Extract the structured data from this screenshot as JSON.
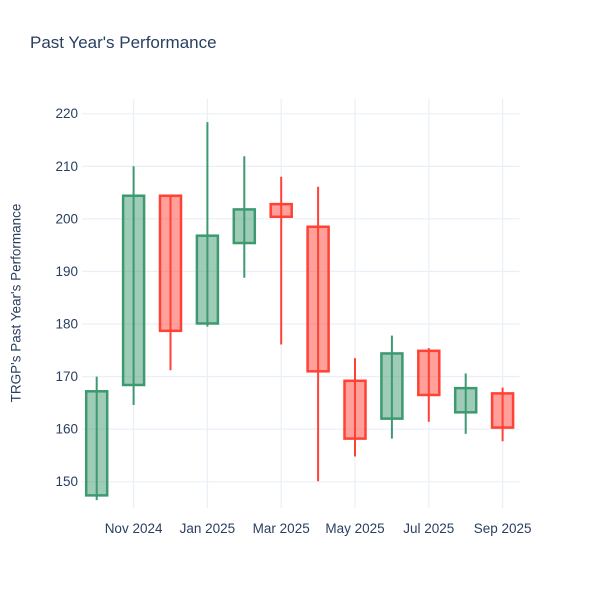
{
  "title": "Past Year's Performance",
  "chart_data": {
    "type": "candlestick",
    "title": "Past Year's Performance",
    "xlabel": "",
    "ylabel": "TRGP's Past Year's Performance",
    "categories": [
      "Oct 2024",
      "Nov 2024",
      "Dec 2024",
      "Jan 2025",
      "Feb 2025",
      "Mar 2025",
      "Apr 2025",
      "May 2025",
      "Jun 2025",
      "Jul 2025",
      "Aug 2025",
      "Sep 2025"
    ],
    "series": [
      {
        "name": "TRGP",
        "ohlc": [
          {
            "month": "Oct 2024",
            "open": 147.4,
            "high": 170.0,
            "low": 146.5,
            "close": 167.2
          },
          {
            "month": "Nov 2024",
            "open": 168.4,
            "high": 210.0,
            "low": 164.6,
            "close": 204.4
          },
          {
            "month": "Dec 2024",
            "open": 204.4,
            "high": 204.6,
            "low": 171.2,
            "close": 178.7
          },
          {
            "month": "Jan 2025",
            "open": 180.1,
            "high": 218.4,
            "low": 179.5,
            "close": 196.8
          },
          {
            "month": "Feb 2025",
            "open": 195.4,
            "high": 211.9,
            "low": 188.8,
            "close": 201.8
          },
          {
            "month": "Mar 2025",
            "open": 202.8,
            "high": 208.0,
            "low": 176.1,
            "close": 200.4
          },
          {
            "month": "Apr 2025",
            "open": 198.5,
            "high": 206.1,
            "low": 150.1,
            "close": 171.0
          },
          {
            "month": "May 2025",
            "open": 169.2,
            "high": 173.5,
            "low": 154.8,
            "close": 158.2
          },
          {
            "month": "Jun 2025",
            "open": 162.0,
            "high": 177.8,
            "low": 158.2,
            "close": 174.4
          },
          {
            "month": "Jul 2025",
            "open": 174.9,
            "high": 175.4,
            "low": 161.4,
            "close": 166.5
          },
          {
            "month": "Aug 2025",
            "open": 163.2,
            "high": 170.6,
            "low": 159.1,
            "close": 167.8
          },
          {
            "month": "Sep 2025",
            "open": 166.8,
            "high": 167.9,
            "low": 157.7,
            "close": 160.3
          }
        ]
      }
    ],
    "x_tick_labels": [
      "Nov 2024",
      "Jan 2025",
      "Mar 2025",
      "May 2025",
      "Jul 2025",
      "Sep 2025"
    ],
    "x_tick_indices": [
      1,
      3,
      5,
      7,
      9,
      11
    ],
    "y_ticks": [
      150,
      160,
      170,
      180,
      190,
      200,
      210,
      220
    ],
    "ylim": [
      145.0,
      222.8
    ],
    "grid": true,
    "legend": "none",
    "colors": {
      "increasing": "#3D9970",
      "decreasing": "#FF4136",
      "increasing_fill": "rgba(61,153,112,0.5)",
      "decreasing_fill": "rgba(255,65,54,0.5)",
      "gridline": "#EBF0F8",
      "text": "#2a3f5f",
      "background": "#ffffff"
    }
  }
}
